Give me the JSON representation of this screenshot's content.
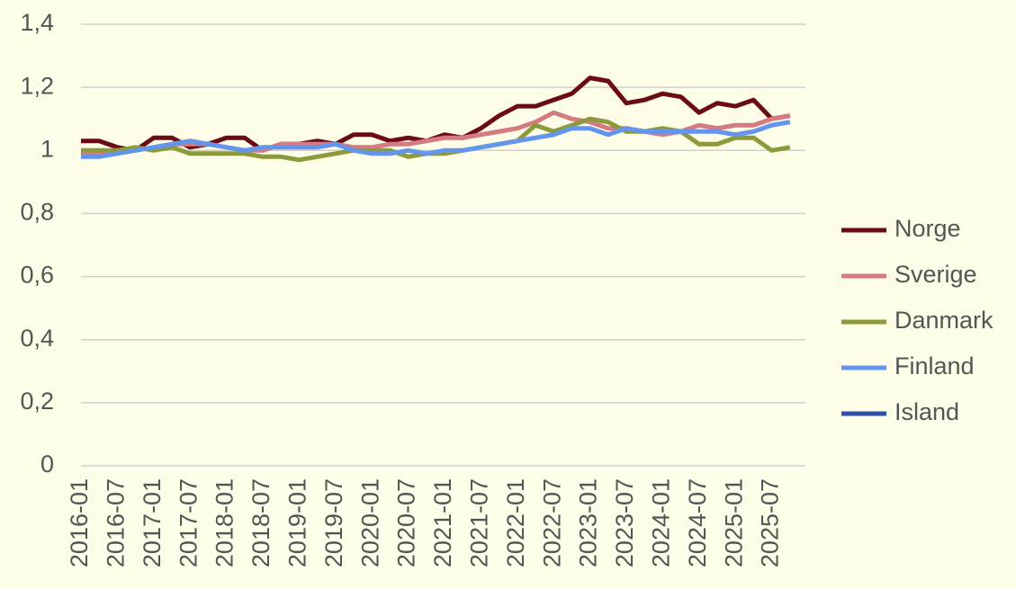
{
  "chart_data": {
    "type": "line",
    "categories": [
      "2016-01",
      null,
      "2016-07",
      null,
      "2017-01",
      null,
      "2017-07",
      null,
      "2018-01",
      null,
      "2018-07",
      null,
      "2019-01",
      null,
      "2019-07",
      null,
      "2020-01",
      null,
      "2020-07",
      null,
      "2021-01",
      null,
      "2021-07",
      null,
      "2022-01",
      null,
      "2022-07",
      null,
      "2023-01",
      null,
      "2023-07",
      null,
      "2024-01",
      null,
      "2024-07",
      null,
      "2025-01",
      null,
      "2025-07",
      null
    ],
    "series": [
      {
        "name": "Norge",
        "color": "#6b0c14",
        "values": [
          1.03,
          1.03,
          1.01,
          1.0,
          1.04,
          1.04,
          1.01,
          1.02,
          1.04,
          1.04,
          1.0,
          1.02,
          1.02,
          1.03,
          1.02,
          1.05,
          1.05,
          1.03,
          1.04,
          1.03,
          1.05,
          1.04,
          1.07,
          1.11,
          1.14,
          1.14,
          1.16,
          1.18,
          1.23,
          1.22,
          1.15,
          1.16,
          1.18,
          1.17,
          1.12,
          1.15,
          1.14,
          1.16,
          1.1,
          1.11
        ]
      },
      {
        "name": "Sverige",
        "color": "#d47a80",
        "values": [
          0.99,
          0.99,
          1.0,
          1.0,
          1.01,
          1.02,
          1.02,
          1.02,
          1.01,
          1.0,
          1.0,
          1.02,
          1.02,
          1.02,
          1.02,
          1.01,
          1.01,
          1.02,
          1.02,
          1.03,
          1.04,
          1.04,
          1.05,
          1.06,
          1.07,
          1.09,
          1.12,
          1.1,
          1.09,
          1.07,
          1.07,
          1.06,
          1.05,
          1.06,
          1.08,
          1.07,
          1.08,
          1.08,
          1.1,
          1.11
        ]
      },
      {
        "name": "Danmark",
        "color": "#8c9a3c",
        "values": [
          1.0,
          1.0,
          1.0,
          1.01,
          1.0,
          1.01,
          0.99,
          0.99,
          0.99,
          0.99,
          0.98,
          0.98,
          0.97,
          0.98,
          0.99,
          1.0,
          1.0,
          1.0,
          0.98,
          0.99,
          0.99,
          1.0,
          1.01,
          1.02,
          1.03,
          1.08,
          1.06,
          1.08,
          1.1,
          1.09,
          1.06,
          1.06,
          1.07,
          1.06,
          1.02,
          1.02,
          1.04,
          1.04,
          1.0,
          1.01
        ]
      },
      {
        "name": "Finland",
        "color": "#6495ed",
        "values": [
          0.98,
          0.98,
          0.99,
          1.0,
          1.01,
          1.02,
          1.03,
          1.02,
          1.01,
          1.0,
          1.01,
          1.01,
          1.01,
          1.01,
          1.02,
          1.0,
          0.99,
          0.99,
          1.0,
          0.99,
          1.0,
          1.0,
          1.01,
          1.02,
          1.03,
          1.04,
          1.05,
          1.07,
          1.07,
          1.05,
          1.07,
          1.06,
          1.06,
          1.06,
          1.06,
          1.06,
          1.05,
          1.06,
          1.08,
          1.09
        ]
      },
      {
        "name": "Island",
        "color": "#2e4fa8",
        "values": [
          null,
          null,
          null,
          null,
          null,
          null,
          null,
          null,
          null,
          null,
          null,
          null,
          null,
          null,
          null,
          null,
          null,
          null,
          null,
          null,
          null,
          null,
          null,
          null,
          null,
          null,
          null,
          null,
          null,
          null,
          null,
          null,
          null,
          null,
          null,
          null,
          null,
          null,
          null,
          null
        ]
      }
    ],
    "ylim": [
      0,
      1.4
    ],
    "yticks": [
      0,
      {
        "value": 0.2,
        "label": "0,2"
      },
      {
        "value": 0.4,
        "label": "0,4"
      },
      {
        "value": 0.6,
        "label": "0,6"
      },
      {
        "value": 0.8,
        "label": "0,8"
      },
      1,
      {
        "value": 1.2,
        "label": "1,2"
      },
      {
        "value": 1.4,
        "label": "1,4"
      }
    ],
    "grid": true,
    "legend": "right"
  }
}
